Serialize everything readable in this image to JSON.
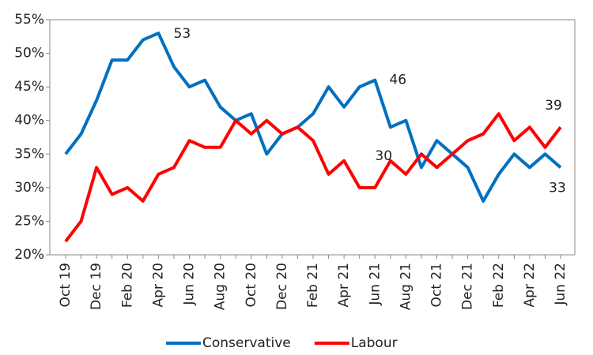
{
  "chart_data": {
    "type": "line",
    "categories": [
      "Oct 19",
      null,
      "Dec 19",
      null,
      "Feb 20",
      null,
      "Apr 20",
      null,
      "Jun 20",
      null,
      "Aug 20",
      null,
      "Oct 20",
      null,
      "Dec 20",
      null,
      "Feb 21",
      null,
      "Apr 21",
      null,
      "Jun 21",
      null,
      "Aug 21",
      null,
      "Oct 21",
      null,
      "Dec 21",
      null,
      "Feb 22",
      null,
      "Apr 22",
      null,
      "Jun 22"
    ],
    "series": [
      {
        "name": "Conservative",
        "color": "#0070c0",
        "values": [
          35,
          38,
          43,
          49,
          49,
          52,
          53,
          48,
          45,
          46,
          42,
          40,
          41,
          35,
          38,
          39,
          41,
          45,
          42,
          45,
          46,
          39,
          40,
          33,
          37,
          35,
          33,
          28,
          32,
          35,
          33,
          35,
          33
        ],
        "label_points": [
          6,
          20,
          32
        ]
      },
      {
        "name": "Labour",
        "color": "#ff0000",
        "values": [
          22,
          25,
          33,
          29,
          30,
          28,
          32,
          33,
          37,
          36,
          36,
          40,
          38,
          40,
          38,
          39,
          37,
          32,
          34,
          30,
          30,
          34,
          32,
          35,
          33,
          35,
          37,
          38,
          41,
          37,
          39,
          36,
          39
        ],
        "label_points": [
          20,
          32
        ]
      }
    ],
    "ylim": [
      20,
      55
    ],
    "yticks": [
      {
        "value": 20,
        "label": "20%"
      },
      {
        "value": 25,
        "label": "25%"
      },
      {
        "value": 30,
        "label": "30%"
      },
      {
        "value": 35,
        "label": "35%"
      },
      {
        "value": 40,
        "label": "40%"
      },
      {
        "value": 45,
        "label": "45%"
      },
      {
        "value": 50,
        "label": "50%"
      },
      {
        "value": 55,
        "label": "55%"
      }
    ],
    "grid": false,
    "legend": "bottom"
  }
}
